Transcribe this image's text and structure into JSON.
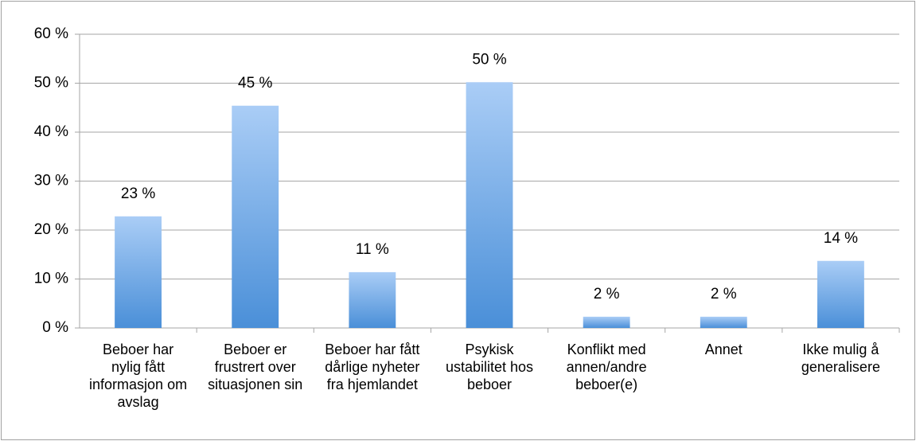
{
  "chart_data": {
    "type": "bar",
    "categories": [
      "Beboer har nylig fått informasjon om avslag",
      "Beboer er frustrert over situasjonen sin",
      "Beboer har fått dårlige nyheter fra hjemlandet",
      "Psykisk ustabilitet hos beboer",
      "Konflikt med annen/andre beboer(e)",
      "Annet",
      "Ikke mulig å generalisere"
    ],
    "values": [
      22.8,
      45.4,
      11.4,
      50.2,
      2.3,
      2.3,
      13.7
    ],
    "value_labels": [
      "23 %",
      "45 %",
      "11 %",
      "50 %",
      "2 %",
      "2 %",
      "14 %"
    ],
    "color": "#4a8fd8",
    "ylim": [
      0,
      60
    ],
    "yticks": [
      {
        "value": 0,
        "label": "0 %"
      },
      {
        "value": 10,
        "label": "10 %"
      },
      {
        "value": 20,
        "label": "20 %"
      },
      {
        "value": 30,
        "label": "30 %"
      },
      {
        "value": 40,
        "label": "40 %"
      },
      {
        "value": 50,
        "label": "50 %"
      },
      {
        "value": 60,
        "label": "60 %"
      }
    ],
    "grid": true
  }
}
